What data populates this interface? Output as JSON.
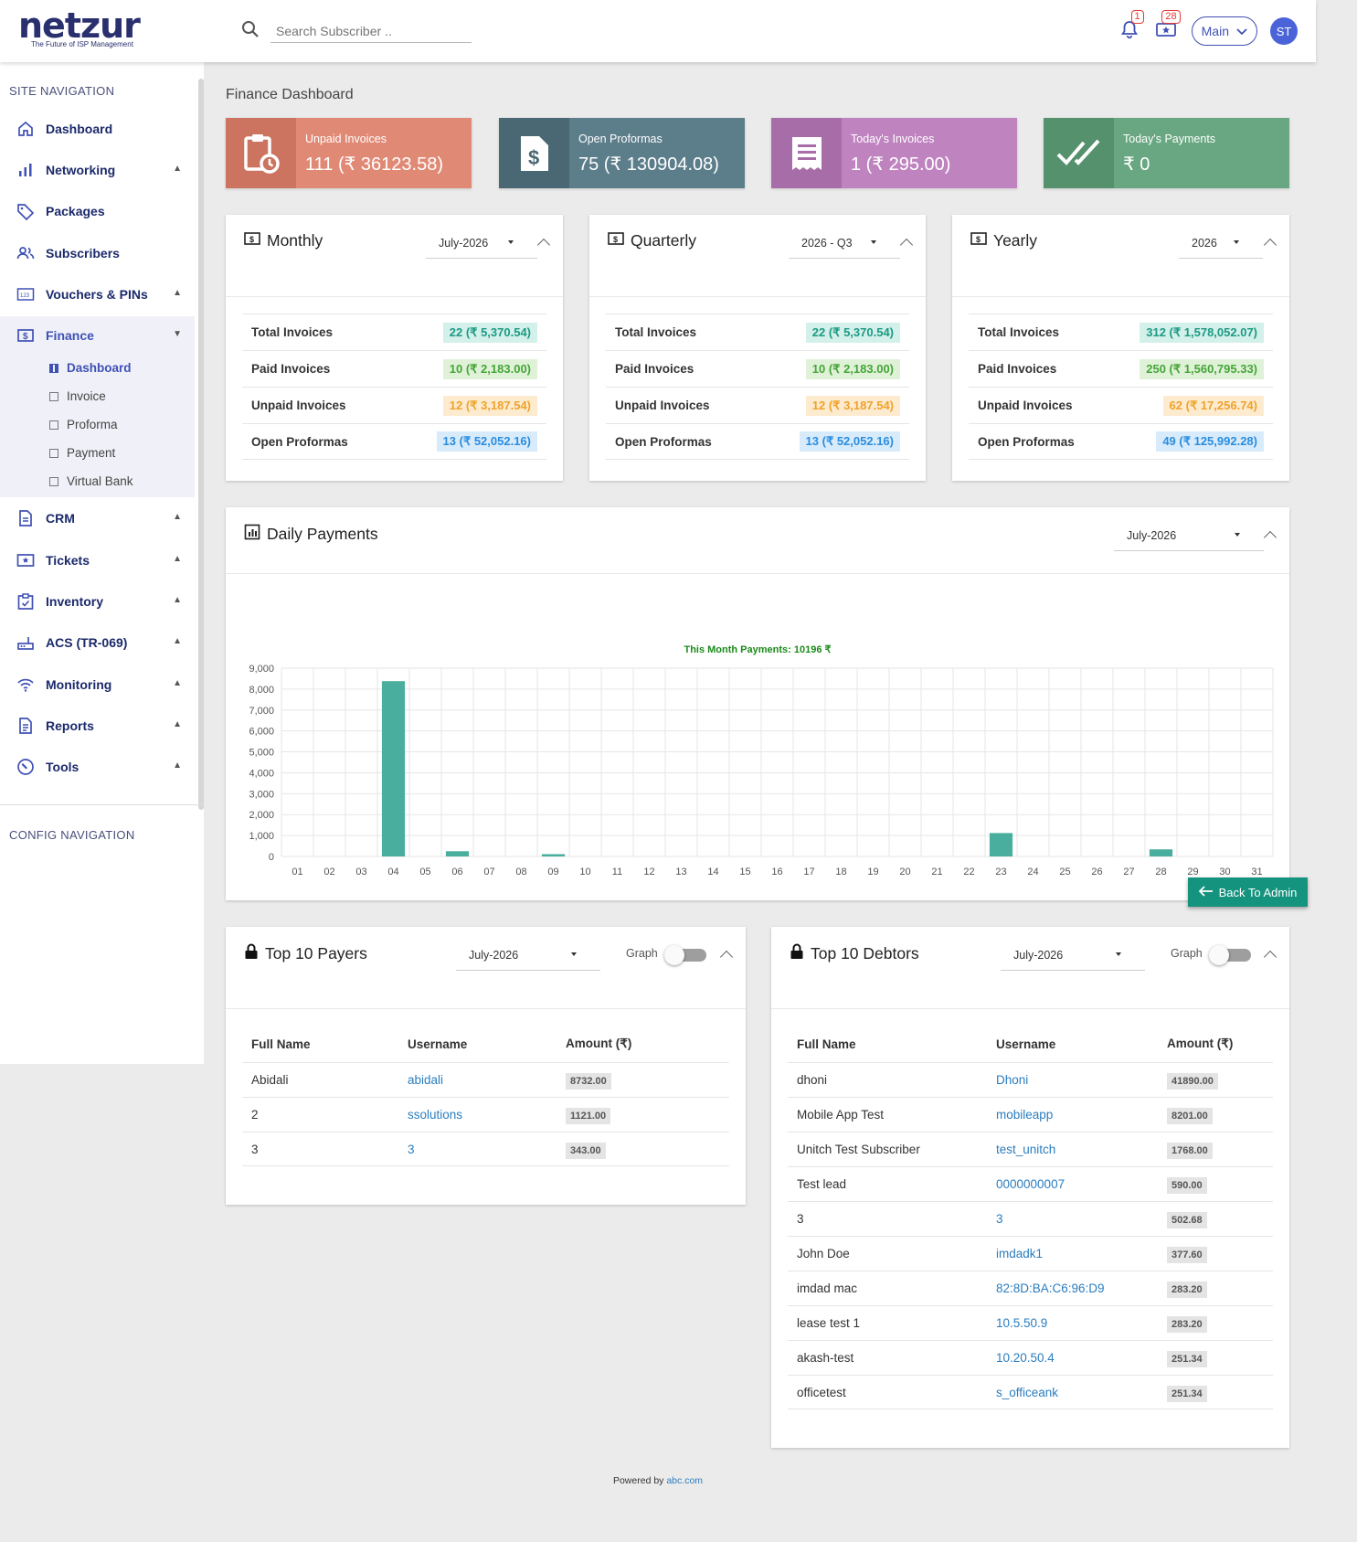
{
  "app": {
    "logo_text": "netzur",
    "tagline": "The Future of ISP Management"
  },
  "search": {
    "placeholder": "Search Subscriber .."
  },
  "header": {
    "notif_badge": "1",
    "ticket_badge": "28",
    "zone_select": "Main",
    "avatar_initials": "ST"
  },
  "sidebar": {
    "site_heading": "SITE NAVIGATION",
    "config_heading": "CONFIG NAVIGATION",
    "items": [
      {
        "label": "Dashboard",
        "icon": "home-icon"
      },
      {
        "label": "Networking",
        "icon": "bar-chart-icon"
      },
      {
        "label": "Packages",
        "icon": "tag-icon"
      },
      {
        "label": "Subscribers",
        "icon": "users-icon"
      },
      {
        "label": "Vouchers & PINs",
        "icon": "voucher-icon"
      },
      {
        "label": "Finance",
        "icon": "finance-icon"
      },
      {
        "label": "CRM",
        "icon": "document-icon"
      },
      {
        "label": "Tickets",
        "icon": "ticket-icon"
      },
      {
        "label": "Inventory",
        "icon": "inventory-icon"
      },
      {
        "label": "ACS (TR-069)",
        "icon": "router-icon"
      },
      {
        "label": "Monitoring",
        "icon": "signal-icon"
      },
      {
        "label": "Reports",
        "icon": "report-icon"
      },
      {
        "label": "Tools",
        "icon": "tools-icon"
      }
    ],
    "finance_sub": [
      "Dashboard",
      "Invoice",
      "Proforma",
      "Payment",
      "Virtual Bank"
    ]
  },
  "page": {
    "title": "Finance Dashboard"
  },
  "colors": {
    "unpaid": "#e08a76",
    "proformas": "#5c7d8a",
    "today_invoices": "#bf84c0",
    "today_payments": "#68a781",
    "accent": "#3f51b5",
    "bar": "#4aae9e"
  },
  "stat_cards": [
    {
      "label": "Unpaid Invoices",
      "value": "111 (₹ 36123.58)"
    },
    {
      "label": "Open Proformas",
      "value": "75 (₹ 130904.08)"
    },
    {
      "label": "Today's Invoices",
      "value": "1 (₹ 295.00)"
    },
    {
      "label": "Today's Payments",
      "value": "₹ 0"
    }
  ],
  "summary_panels": [
    {
      "title": "Monthly",
      "period": "July-2026",
      "rows": [
        {
          "label": "Total Invoices",
          "value": "22 (₹ 5,370.54)"
        },
        {
          "label": "Paid Invoices",
          "value": "10 (₹ 2,183.00)"
        },
        {
          "label": "Unpaid Invoices",
          "value": "12 (₹ 3,187.54)"
        },
        {
          "label": "Open Proformas",
          "value": "13 (₹ 52,052.16)"
        }
      ]
    },
    {
      "title": "Quarterly",
      "period": "2026 - Q3",
      "rows": [
        {
          "label": "Total Invoices",
          "value": "22 (₹ 5,370.54)"
        },
        {
          "label": "Paid Invoices",
          "value": "10 (₹ 2,183.00)"
        },
        {
          "label": "Unpaid Invoices",
          "value": "12 (₹ 3,187.54)"
        },
        {
          "label": "Open Proformas",
          "value": "13 (₹ 52,052.16)"
        }
      ]
    },
    {
      "title": "Yearly",
      "period": "2026",
      "rows": [
        {
          "label": "Total Invoices",
          "value": "312 (₹ 1,578,052.07)"
        },
        {
          "label": "Paid Invoices",
          "value": "250 (₹ 1,560,795.33)"
        },
        {
          "label": "Unpaid Invoices",
          "value": "62 (₹ 17,256.74)"
        },
        {
          "label": "Open Proformas",
          "value": "49 (₹ 125,992.28)"
        }
      ]
    }
  ],
  "daily_payments": {
    "title": "Daily Payments",
    "period": "July-2026"
  },
  "chart_data": {
    "type": "bar",
    "title": "This Month Payments: 10196 ₹",
    "categories": [
      "01",
      "02",
      "03",
      "04",
      "05",
      "06",
      "07",
      "08",
      "09",
      "10",
      "11",
      "12",
      "13",
      "14",
      "15",
      "16",
      "17",
      "18",
      "19",
      "20",
      "21",
      "22",
      "23",
      "24",
      "25",
      "26",
      "27",
      "28",
      "29",
      "30",
      "31"
    ],
    "values": [
      0,
      0,
      0,
      8380,
      0,
      250,
      0,
      0,
      110,
      0,
      0,
      0,
      0,
      0,
      0,
      0,
      0,
      0,
      0,
      0,
      0,
      0,
      1120,
      0,
      0,
      0,
      0,
      340,
      0,
      0,
      0
    ],
    "ylim": [
      0,
      9000
    ],
    "yticks": [
      "0",
      "1,000",
      "2,000",
      "3,000",
      "4,000",
      "5,000",
      "6,000",
      "7,000",
      "8,000",
      "9,000"
    ],
    "grid": true
  },
  "back_button": {
    "label": "Back To Admin"
  },
  "payers": {
    "title": "Top 10 Payers",
    "period": "July-2026",
    "graph_label": "Graph",
    "columns": [
      "Full Name",
      "Username",
      "Amount (₹)"
    ],
    "rows": [
      {
        "name": "Abidali",
        "username": "abidali",
        "amount": "8732.00"
      },
      {
        "name": "2",
        "username": "ssolutions",
        "amount": "1121.00"
      },
      {
        "name": "3",
        "username": "3",
        "amount": "343.00"
      }
    ]
  },
  "debtors": {
    "title": "Top 10 Debtors",
    "period": "July-2026",
    "graph_label": "Graph",
    "columns": [
      "Full Name",
      "Username",
      "Amount (₹)"
    ],
    "rows": [
      {
        "name": "dhoni",
        "username": "Dhoni",
        "amount": "41890.00"
      },
      {
        "name": "Mobile App Test",
        "username": "mobileapp",
        "amount": "8201.00"
      },
      {
        "name": "Unitch Test Subscriber",
        "username": "test_unitch",
        "amount": "1768.00"
      },
      {
        "name": "Test lead",
        "username": "0000000007",
        "amount": "590.00"
      },
      {
        "name": "3",
        "username": "3",
        "amount": "502.68"
      },
      {
        "name": "John Doe",
        "username": "imdadk1",
        "amount": "377.60"
      },
      {
        "name": "imdad mac",
        "username": "82:8D:BA:C6:96:D9",
        "amount": "283.20"
      },
      {
        "name": "lease test 1",
        "username": "10.5.50.9",
        "amount": "283.20"
      },
      {
        "name": "akash-test",
        "username": "10.20.50.4",
        "amount": "251.34"
      },
      {
        "name": "officetest",
        "username": "s_officeank",
        "amount": "251.34"
      }
    ]
  },
  "footer": {
    "prefix": "Powered by",
    "link": "abc.com"
  }
}
